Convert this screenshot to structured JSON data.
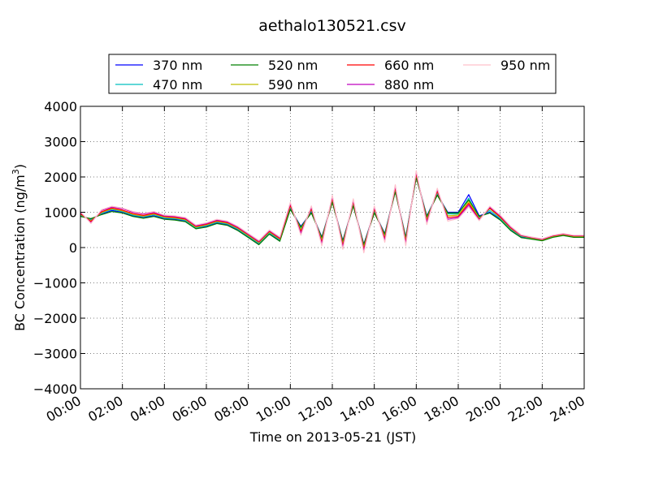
{
  "chart_data": {
    "type": "line",
    "title": "aethalo130521.csv",
    "xlabel": "Time on 2013-05-21 (JST)",
    "ylabel": "BC Concentration (ng/m",
    "ylabel_sup": "3",
    "ylabel_close": ")",
    "xlim": [
      0,
      24
    ],
    "ylim": [
      -4000,
      4000
    ],
    "grid": true,
    "legend_position": "top-center",
    "x_unit": "hours",
    "x_ticks": [
      {
        "value": 0,
        "label": "00:00"
      },
      {
        "value": 2,
        "label": "02:00"
      },
      {
        "value": 4,
        "label": "04:00"
      },
      {
        "value": 6,
        "label": "06:00"
      },
      {
        "value": 8,
        "label": "08:00"
      },
      {
        "value": 10,
        "label": "10:00"
      },
      {
        "value": 12,
        "label": "12:00"
      },
      {
        "value": 14,
        "label": "14:00"
      },
      {
        "value": 16,
        "label": "16:00"
      },
      {
        "value": 18,
        "label": "18:00"
      },
      {
        "value": 20,
        "label": "20:00"
      },
      {
        "value": 22,
        "label": "22:00"
      },
      {
        "value": 24,
        "label": "24:00"
      }
    ],
    "y_ticks": [
      {
        "value": 4000,
        "label": "4000"
      },
      {
        "value": 3000,
        "label": "3000"
      },
      {
        "value": 2000,
        "label": "2000"
      },
      {
        "value": 1000,
        "label": "1000"
      },
      {
        "value": 0,
        "label": "0"
      },
      {
        "value": -1000,
        "label": "−1000"
      },
      {
        "value": -2000,
        "label": "−2000"
      },
      {
        "value": -3000,
        "label": "−3000"
      },
      {
        "value": -4000,
        "label": "−4000"
      }
    ],
    "x": [
      0.0,
      0.5,
      1.0,
      1.5,
      2.0,
      2.5,
      3.0,
      3.5,
      4.0,
      4.5,
      5.0,
      5.5,
      6.0,
      6.5,
      7.0,
      7.5,
      8.0,
      8.5,
      9.0,
      9.5,
      10.0,
      10.5,
      11.0,
      11.5,
      12.0,
      12.5,
      13.0,
      13.5,
      14.0,
      14.5,
      15.0,
      15.5,
      16.0,
      16.5,
      17.0,
      17.5,
      18.0,
      18.5,
      19.0,
      19.5,
      20.0,
      20.5,
      21.0,
      21.5,
      22.0,
      22.5,
      23.0,
      23.5,
      24.0
    ],
    "series": [
      {
        "name": "370 nm",
        "color": "#0000ff",
        "values": [
          900,
          800,
          950,
          1050,
          1000,
          900,
          850,
          900,
          820,
          800,
          750,
          550,
          600,
          700,
          650,
          500,
          300,
          100,
          400,
          200,
          1100,
          600,
          1000,
          300,
          1300,
          200,
          1200,
          100,
          1000,
          400,
          1600,
          300,
          2000,
          900,
          1500,
          1000,
          1000,
          1500,
          900,
          1000,
          800,
          500,
          300,
          250,
          200,
          300,
          350,
          300,
          300
        ]
      },
      {
        "name": "470 nm",
        "color": "#00bfbf",
        "values": [
          920,
          780,
          970,
          1080,
          1020,
          920,
          870,
          930,
          840,
          820,
          770,
          560,
          620,
          720,
          670,
          520,
          320,
          120,
          420,
          220,
          1150,
          550,
          1050,
          250,
          1350,
          150,
          1250,
          50,
          1050,
          350,
          1650,
          250,
          2050,
          850,
          1550,
          950,
          950,
          1400,
          850,
          1050,
          820,
          520,
          320,
          260,
          210,
          310,
          360,
          310,
          310
        ]
      },
      {
        "name": "520 nm",
        "color": "#008000",
        "values": [
          880,
          820,
          930,
          1020,
          980,
          880,
          830,
          880,
          800,
          780,
          730,
          530,
          580,
          680,
          630,
          480,
          280,
          80,
          380,
          180,
          1080,
          580,
          980,
          280,
          1280,
          180,
          1180,
          80,
          980,
          380,
          1580,
          280,
          1980,
          880,
          1480,
          980,
          980,
          1350,
          880,
          980,
          780,
          480,
          280,
          240,
          190,
          290,
          340,
          290,
          290
        ]
      },
      {
        "name": "590 nm",
        "color": "#bfbf00",
        "values": [
          940,
          760,
          990,
          1100,
          1040,
          940,
          890,
          950,
          860,
          840,
          790,
          580,
          640,
          740,
          690,
          540,
          340,
          140,
          440,
          240,
          1180,
          500,
          1080,
          200,
          1380,
          100,
          1280,
          0,
          1080,
          300,
          1680,
          200,
          2080,
          800,
          1580,
          900,
          920,
          1300,
          820,
          1100,
          850,
          540,
          330,
          270,
          220,
          320,
          370,
          320,
          320
        ]
      },
      {
        "name": "660 nm",
        "color": "#ff0000",
        "values": [
          960,
          740,
          1010,
          1120,
          1060,
          960,
          910,
          970,
          880,
          860,
          810,
          600,
          660,
          760,
          710,
          560,
          360,
          160,
          460,
          260,
          1200,
          450,
          1100,
          150,
          1400,
          50,
          1300,
          -50,
          1100,
          250,
          1700,
          150,
          2100,
          750,
          1600,
          850,
          880,
          1250,
          800,
          1120,
          870,
          560,
          340,
          280,
          230,
          330,
          380,
          330,
          330
        ]
      },
      {
        "name": "880 nm",
        "color": "#bf00bf",
        "values": [
          1000,
          700,
          1050,
          1150,
          1100,
          1000,
          950,
          1000,
          900,
          880,
          830,
          620,
          680,
          780,
          730,
          580,
          380,
          180,
          480,
          280,
          1250,
          400,
          1150,
          100,
          1450,
          0,
          1350,
          -100,
          1150,
          200,
          1750,
          100,
          2150,
          700,
          1650,
          800,
          850,
          1200,
          780,
          1150,
          900,
          580,
          350,
          290,
          240,
          340,
          390,
          340,
          340
        ]
      },
      {
        "name": "950 nm",
        "color": "#ffc0cb",
        "values": [
          1020,
          680,
          1070,
          1170,
          1120,
          1020,
          970,
          1020,
          920,
          900,
          850,
          640,
          700,
          800,
          750,
          600,
          400,
          200,
          500,
          300,
          1280,
          350,
          1180,
          50,
          1480,
          -50,
          1380,
          -150,
          1180,
          150,
          1780,
          50,
          2180,
          650,
          1680,
          750,
          820,
          1150,
          760,
          1170,
          920,
          600,
          360,
          300,
          250,
          350,
          400,
          350,
          350
        ]
      }
    ]
  }
}
